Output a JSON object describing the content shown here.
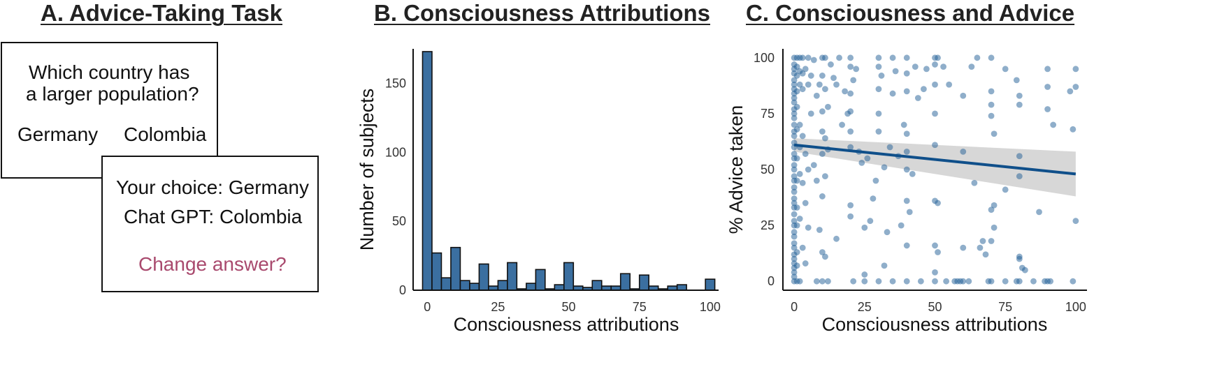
{
  "panel_a": {
    "title": "A. Advice-Taking Task",
    "question_line1": "Which country has",
    "question_line2": "a larger population?",
    "option_1": "Germany",
    "option_2": "Colombia",
    "your_choice": "Your choice: Germany",
    "chatgpt_choice": "Chat GPT: Colombia",
    "change_answer": "Change answer?",
    "change_color": "#a94a6e"
  },
  "panel_b": {
    "title": "B. Consciousness Attributions"
  },
  "panel_c": {
    "title": "C. Consciousness and Advice"
  },
  "chart_data": [
    {
      "type": "bar",
      "title": "B. Consciousness Attributions",
      "xlabel": "Consciousness attributions",
      "ylabel": "Number of subjects",
      "bin_width": 3.33,
      "bin_centers": [
        0,
        3.33,
        6.67,
        10,
        13.33,
        16.67,
        20,
        23.33,
        26.67,
        30,
        33.33,
        36.67,
        40,
        43.33,
        46.67,
        50,
        53.33,
        56.67,
        60,
        63.33,
        66.67,
        70,
        73.33,
        76.67,
        80,
        83.33,
        86.67,
        90,
        93.33,
        96.67,
        100
      ],
      "values": [
        173,
        27,
        9,
        31,
        7,
        5,
        19,
        3,
        7,
        20,
        1,
        5,
        15,
        1,
        4,
        20,
        3,
        2,
        7,
        3,
        3,
        12,
        1,
        11,
        3,
        1,
        3,
        4,
        0,
        0,
        8
      ],
      "xlim": [
        -5,
        103
      ],
      "ylim": [
        0,
        175
      ],
      "xticks": [
        0,
        25,
        50,
        75,
        100
      ],
      "yticks": [
        0,
        50,
        100,
        150
      ],
      "color": "#3b6fa0",
      "grid": false
    },
    {
      "type": "scatter",
      "title": "C. Consciousness and Advice",
      "xlabel": "Consciousness attributions",
      "ylabel": "% Advice taken",
      "xlim": [
        -4,
        104
      ],
      "ylim": [
        -4,
        104
      ],
      "xticks": [
        0,
        25,
        50,
        75,
        100
      ],
      "yticks": [
        0,
        25,
        50,
        75,
        100
      ],
      "point_color": "#1f5e96",
      "line_color": "#0f4f8a",
      "band_color": "#d3d3d3",
      "grid": false,
      "regression": {
        "x": [
          0,
          100
        ],
        "y": [
          61,
          48
        ],
        "ci_lower": [
          58,
          38
        ],
        "ci_upper": [
          64,
          58
        ]
      },
      "points": [
        [
          0,
          100
        ],
        [
          0,
          97
        ],
        [
          0,
          95
        ],
        [
          0,
          93
        ],
        [
          0,
          90
        ],
        [
          0,
          88
        ],
        [
          0,
          86
        ],
        [
          0,
          84
        ],
        [
          0,
          82
        ],
        [
          0,
          80
        ],
        [
          0,
          77
        ],
        [
          0,
          75
        ],
        [
          0,
          73
        ],
        [
          0,
          70
        ],
        [
          0,
          67
        ],
        [
          0,
          65
        ],
        [
          0,
          62
        ],
        [
          0,
          60
        ],
        [
          0,
          57
        ],
        [
          0,
          55
        ],
        [
          0,
          52
        ],
        [
          0,
          50
        ],
        [
          0,
          47
        ],
        [
          0,
          45
        ],
        [
          0,
          42
        ],
        [
          0,
          40
        ],
        [
          0,
          37
        ],
        [
          0,
          35
        ],
        [
          0,
          33
        ],
        [
          0,
          30
        ],
        [
          0,
          27
        ],
        [
          0,
          25
        ],
        [
          0,
          22
        ],
        [
          0,
          20
        ],
        [
          0,
          17
        ],
        [
          0,
          15
        ],
        [
          0,
          12
        ],
        [
          0,
          10
        ],
        [
          0,
          8
        ],
        [
          0,
          6
        ],
        [
          0,
          4
        ],
        [
          0,
          2
        ],
        [
          0,
          0
        ],
        [
          1,
          100
        ],
        [
          1,
          96
        ],
        [
          1,
          92
        ],
        [
          1,
          85
        ],
        [
          1,
          78
        ],
        [
          1,
          68
        ],
        [
          1,
          55
        ],
        [
          1,
          45
        ],
        [
          1,
          33
        ],
        [
          1,
          25
        ],
        [
          1,
          13
        ],
        [
          1,
          7
        ],
        [
          1,
          0
        ],
        [
          2,
          100
        ],
        [
          2,
          94
        ],
        [
          2,
          88
        ],
        [
          2,
          70
        ],
        [
          2,
          60
        ],
        [
          2,
          48
        ],
        [
          2,
          28
        ],
        [
          2,
          0
        ],
        [
          3,
          100
        ],
        [
          3,
          93
        ],
        [
          3,
          86
        ],
        [
          3,
          65
        ],
        [
          3,
          44
        ],
        [
          3,
          15
        ],
        [
          4,
          95
        ],
        [
          4,
          57
        ],
        [
          4,
          35
        ],
        [
          4,
          8
        ],
        [
          5,
          100
        ],
        [
          5,
          88
        ],
        [
          5,
          50
        ],
        [
          5,
          24
        ],
        [
          6,
          92
        ],
        [
          6,
          75
        ],
        [
          7,
          99
        ],
        [
          7,
          52
        ],
        [
          8,
          83
        ],
        [
          8,
          45
        ],
        [
          8,
          0
        ],
        [
          9,
          88
        ],
        [
          9,
          23
        ],
        [
          10,
          100
        ],
        [
          10,
          92
        ],
        [
          10,
          76
        ],
        [
          10,
          67
        ],
        [
          10,
          57
        ],
        [
          10,
          38
        ],
        [
          10,
          13
        ],
        [
          10,
          0
        ],
        [
          11,
          100
        ],
        [
          11,
          86
        ],
        [
          11,
          64
        ],
        [
          11,
          47
        ],
        [
          11,
          11
        ],
        [
          12,
          78
        ],
        [
          12,
          59
        ],
        [
          12,
          0
        ],
        [
          13,
          97
        ],
        [
          14,
          91
        ],
        [
          15,
          88
        ],
        [
          15,
          19
        ],
        [
          16,
          100
        ],
        [
          17,
          70
        ],
        [
          18,
          85
        ],
        [
          19,
          75
        ],
        [
          20,
          100
        ],
        [
          20,
          96
        ],
        [
          20,
          84
        ],
        [
          20,
          76
        ],
        [
          20,
          67
        ],
        [
          20,
          60
        ],
        [
          20,
          34
        ],
        [
          20,
          29
        ],
        [
          21,
          90
        ],
        [
          21,
          0
        ],
        [
          22,
          95
        ],
        [
          23,
          58
        ],
        [
          24,
          53
        ],
        [
          25,
          24
        ],
        [
          25,
          3
        ],
        [
          25,
          0
        ],
        [
          26,
          55
        ],
        [
          27,
          27
        ],
        [
          28,
          37
        ],
        [
          29,
          45
        ],
        [
          30,
          100
        ],
        [
          30,
          96
        ],
        [
          30,
          86
        ],
        [
          30,
          75
        ],
        [
          30,
          67
        ],
        [
          30,
          0
        ],
        [
          31,
          92
        ],
        [
          32,
          51
        ],
        [
          32,
          7
        ],
        [
          33,
          22
        ],
        [
          34,
          60
        ],
        [
          35,
          100
        ],
        [
          35,
          84
        ],
        [
          35,
          0
        ],
        [
          36,
          94
        ],
        [
          37,
          56
        ],
        [
          38,
          25
        ],
        [
          39,
          70
        ],
        [
          40,
          100
        ],
        [
          40,
          93
        ],
        [
          40,
          85
        ],
        [
          40,
          66
        ],
        [
          40,
          58
        ],
        [
          40,
          50
        ],
        [
          40,
          36
        ],
        [
          40,
          16
        ],
        [
          40,
          0
        ],
        [
          41,
          31
        ],
        [
          42,
          48
        ],
        [
          43,
          96
        ],
        [
          44,
          82
        ],
        [
          45,
          0
        ],
        [
          46,
          86
        ],
        [
          47,
          95
        ],
        [
          50,
          100
        ],
        [
          50,
          97
        ],
        [
          50,
          88
        ],
        [
          50,
          75
        ],
        [
          50,
          61
        ],
        [
          50,
          36
        ],
        [
          50,
          16
        ],
        [
          50,
          4
        ],
        [
          50,
          0
        ],
        [
          51,
          100
        ],
        [
          51,
          13
        ],
        [
          51,
          35
        ],
        [
          53,
          96
        ],
        [
          54,
          0
        ],
        [
          55,
          88
        ],
        [
          57,
          0
        ],
        [
          58,
          0
        ],
        [
          59,
          0
        ],
        [
          60,
          83
        ],
        [
          60,
          58
        ],
        [
          60,
          15
        ],
        [
          60,
          0
        ],
        [
          62,
          0
        ],
        [
          63,
          96
        ],
        [
          64,
          44
        ],
        [
          65,
          100
        ],
        [
          66,
          15
        ],
        [
          67,
          18
        ],
        [
          68,
          12
        ],
        [
          69,
          0
        ],
        [
          70,
          100
        ],
        [
          70,
          85
        ],
        [
          70,
          79
        ],
        [
          70,
          74
        ],
        [
          70,
          32
        ],
        [
          70,
          18
        ],
        [
          70,
          0
        ],
        [
          71,
          66
        ],
        [
          71,
          24
        ],
        [
          71,
          34
        ],
        [
          75,
          95
        ],
        [
          75,
          41
        ],
        [
          75,
          0
        ],
        [
          79,
          90
        ],
        [
          79,
          0
        ],
        [
          80,
          83
        ],
        [
          80,
          79
        ],
        [
          80,
          56
        ],
        [
          80,
          47
        ],
        [
          80,
          11
        ],
        [
          80,
          10
        ],
        [
          80,
          0
        ],
        [
          81,
          6
        ],
        [
          82,
          5
        ],
        [
          85,
          0
        ],
        [
          87,
          31
        ],
        [
          89,
          0
        ],
        [
          90,
          95
        ],
        [
          90,
          87
        ],
        [
          90,
          77
        ],
        [
          90,
          0
        ],
        [
          91,
          0
        ],
        [
          92,
          70
        ],
        [
          98,
          85
        ],
        [
          99,
          68
        ],
        [
          99,
          0
        ],
        [
          100,
          95
        ],
        [
          100,
          87
        ],
        [
          100,
          27
        ]
      ]
    }
  ]
}
